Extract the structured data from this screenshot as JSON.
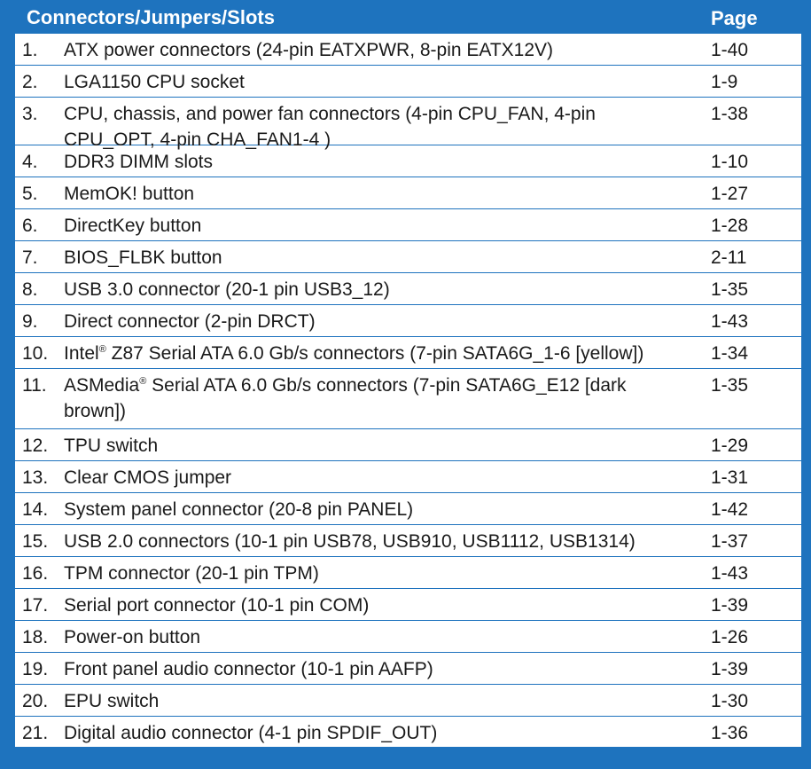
{
  "table": {
    "header": {
      "name": "Connectors/Jumpers/Slots",
      "page": "Page"
    },
    "rows": [
      {
        "num": "1.",
        "desc": "ATX power connectors (24-pin EATXPWR, 8-pin EATX12V)",
        "page": "1-40"
      },
      {
        "num": "2.",
        "desc": "LGA1150 CPU socket",
        "page": "1-9"
      },
      {
        "num": "3.",
        "desc": "CPU, chassis, and power fan connectors (4-pin CPU_FAN, 4-pin CPU_OPT, 4-pin CHA_FAN1-4 )",
        "page": "1-38"
      },
      {
        "num": "4.",
        "desc": "DDR3 DIMM slots",
        "page": "1-10"
      },
      {
        "num": "5.",
        "desc": "MemOK! button",
        "page": "1-27"
      },
      {
        "num": "6.",
        "desc": "DirectKey button",
        "page": "1-28"
      },
      {
        "num": "7.",
        "desc": "BIOS_FLBK button",
        "page": "2-11"
      },
      {
        "num": "8.",
        "desc": "USB 3.0 connector (20-1 pin USB3_12)",
        "page": "1-35"
      },
      {
        "num": "9.",
        "desc": "Direct connector (2-pin DRCT)",
        "page": "1-43"
      },
      {
        "num": "10.",
        "desc_pre": "Intel",
        "reg": "®",
        "desc": " Z87 Serial ATA 6.0 Gb/s connectors (7-pin SATA6G_1-6 [yellow])",
        "page": "1-34"
      },
      {
        "num": "11.",
        "desc_pre": "ASMedia",
        "reg": "®",
        "desc": " Serial ATA 6.0 Gb/s connectors (7-pin SATA6G_E12 [dark brown])",
        "page": "1-35"
      },
      {
        "num": "12.",
        "desc": "TPU switch",
        "page": "1-29"
      },
      {
        "num": "13.",
        "desc": "Clear CMOS jumper",
        "page": "1-31"
      },
      {
        "num": "14.",
        "desc": "System panel connector (20-8 pin PANEL)",
        "page": "1-42"
      },
      {
        "num": "15.",
        "desc": "USB 2.0 connectors (10-1 pin USB78, USB910, USB1112, USB1314)",
        "page": "1-37"
      },
      {
        "num": "16.",
        "desc": "TPM connector (20-1 pin TPM)",
        "page": "1-43"
      },
      {
        "num": "17.",
        "desc": "Serial port connector (10-1 pin COM)",
        "page": "1-39"
      },
      {
        "num": "18.",
        "desc": "Power-on button",
        "page": "1-26"
      },
      {
        "num": "19.",
        "desc": "Front panel audio connector (10-1 pin AAFP)",
        "page": "1-39"
      },
      {
        "num": "20.",
        "desc": "EPU switch",
        "page": "1-30"
      },
      {
        "num": "21.",
        "desc": "Digital audio connector (4-1 pin SPDIF_OUT)",
        "page": "1-36"
      }
    ],
    "colors": {
      "frame": "#1e73be",
      "text": "#1a1a1a"
    }
  }
}
